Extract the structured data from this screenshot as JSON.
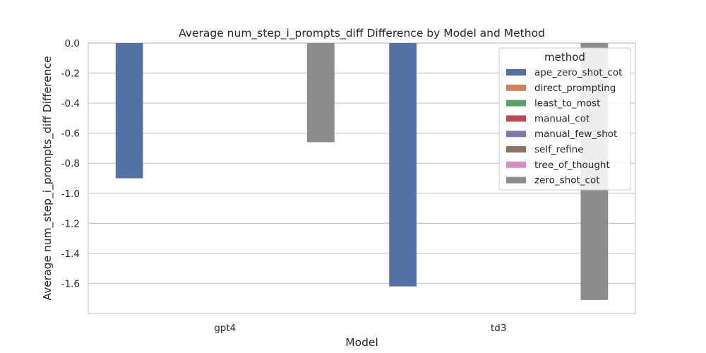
{
  "chart_data": {
    "type": "bar",
    "title": "Average num_step_i_prompts_diff Difference by Model and Method",
    "xlabel": "Model",
    "ylabel": "Average num_step_i_prompts_diff Difference",
    "categories": [
      "gpt4",
      "td3"
    ],
    "ylim": [
      -1.8,
      0.0
    ],
    "yticks": [
      "0.0",
      "-0.2",
      "-0.4",
      "-0.6",
      "-0.8",
      "-1.0",
      "-1.2",
      "-1.4",
      "-1.6"
    ],
    "ytick_values": [
      0.0,
      -0.2,
      -0.4,
      -0.6,
      -0.8,
      -1.0,
      -1.2,
      -1.4,
      -1.6
    ],
    "grid": true,
    "legend": {
      "title": "method",
      "placement": "top-right"
    },
    "series": [
      {
        "name": "ape_zero_shot_cot",
        "color": "#5471a5",
        "values": [
          -0.9,
          -1.62
        ]
      },
      {
        "name": "direct_prompting",
        "color": "#d0835a",
        "values": [
          0,
          0
        ]
      },
      {
        "name": "least_to_most",
        "color": "#5aa16e",
        "values": [
          0,
          0
        ]
      },
      {
        "name": "manual_cot",
        "color": "#c04b52",
        "values": [
          0,
          0
        ]
      },
      {
        "name": "manual_few_shot",
        "color": "#8574ad",
        "values": [
          0,
          0
        ]
      },
      {
        "name": "self_refine",
        "color": "#8c7359",
        "values": [
          0,
          0
        ]
      },
      {
        "name": "tree_of_thought",
        "color": "#d88ec3",
        "values": [
          0,
          0
        ]
      },
      {
        "name": "zero_shot_cot",
        "color": "#8c8c8c",
        "values": [
          -0.66,
          -1.71
        ]
      }
    ]
  }
}
